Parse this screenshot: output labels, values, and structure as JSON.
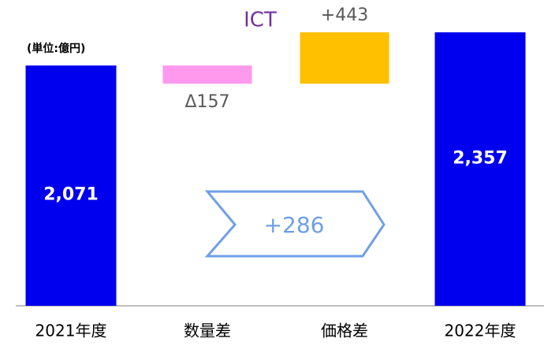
{
  "chart_data": {
    "type": "waterfall",
    "title": "ICT",
    "unit_label": "(単位:億円)",
    "categories": [
      "2021年度",
      "数量差",
      "価格差",
      "2022年度"
    ],
    "values": [
      2071,
      -157,
      443,
      2357
    ],
    "value_labels": [
      "2,071",
      "Δ157",
      "+443",
      "2,357"
    ],
    "totals": [
      true,
      false,
      false,
      true
    ],
    "colors": [
      "#0000ee",
      "#ff99ee",
      "#ffc000",
      "#0000ee"
    ],
    "annotation": "+286"
  }
}
